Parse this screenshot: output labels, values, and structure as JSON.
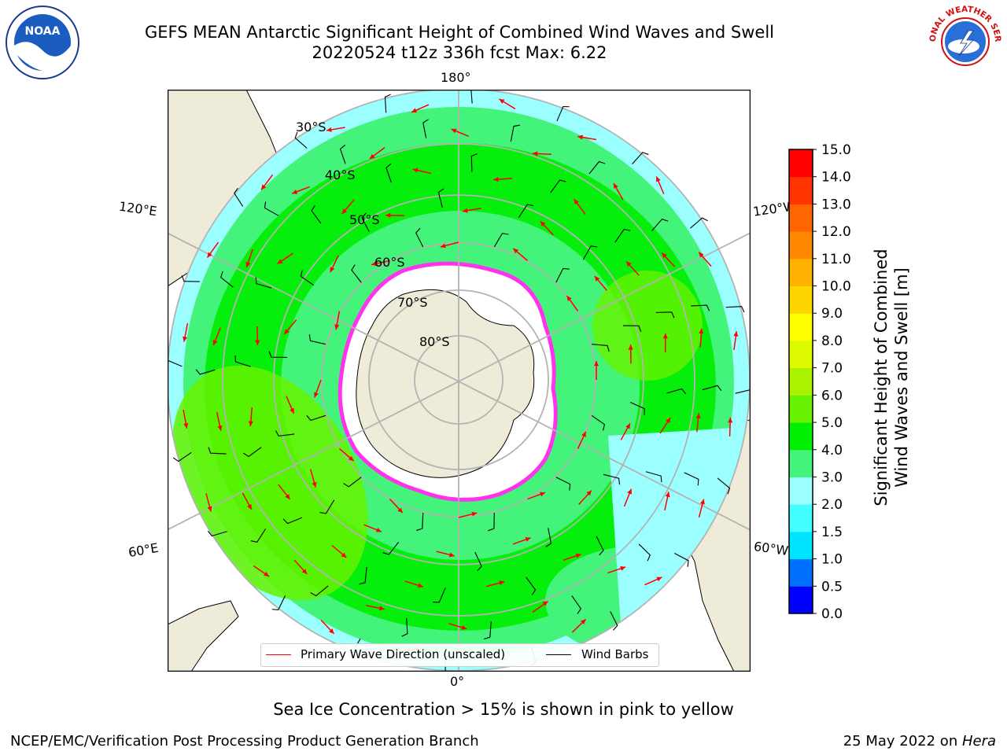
{
  "header": {
    "title_line1": "GEFS MEAN Antarctic Significant Height of Combined Wind Waves and Swell",
    "title_line2": "20220524 t12z 336h fcst   Max: 6.22"
  },
  "logos": {
    "left": {
      "icon": "noaa-logo",
      "text": "NOAA"
    },
    "right": {
      "icon": "nws-logo",
      "text": "NATIONAL WEATHER SERVICE"
    }
  },
  "map": {
    "projection": "south-polar-stereographic",
    "longitude_labels": {
      "top": "180°",
      "bottom": "0°",
      "left_upper": "120°E",
      "left_lower": "60°E",
      "right_upper": "120°W",
      "right_lower": "60°W"
    },
    "latitude_labels": [
      "30°S",
      "40°S",
      "50°S",
      "60°S",
      "70°S",
      "80°S"
    ],
    "colors": {
      "land": "#eeebd9",
      "ice_edge": "#ff33ee",
      "wave_arrow": "#ff0000",
      "wind_barb": "#000000",
      "grid": "#b3b3b3"
    }
  },
  "legend": {
    "wave_label": "Primary Wave Direction (unscaled)",
    "barb_label": "Wind Barbs",
    "wave_color": "#ff0000",
    "barb_color": "#000000"
  },
  "colorbar": {
    "label_line1": "Significant Height of Combined",
    "label_line2": "Wind Waves and Swell [m]",
    "ticks": [
      "0.0",
      "0.5",
      "1.0",
      "1.5",
      "2.0",
      "3.0",
      "4.0",
      "5.0",
      "6.0",
      "7.0",
      "8.0",
      "9.0",
      "10.0",
      "11.0",
      "12.0",
      "13.0",
      "14.0",
      "15.0"
    ],
    "colors": [
      "#0000ff",
      "#0070ff",
      "#00e5ff",
      "#44ffff",
      "#9bffff",
      "#44f47a",
      "#00ee00",
      "#66f200",
      "#aaf200",
      "#ddfa00",
      "#ffff00",
      "#ffd500",
      "#ffb300",
      "#ff8800",
      "#ff6600",
      "#ff3300",
      "#ff0000"
    ]
  },
  "subtitle": "Sea Ice Concentration > 15% is shown in pink to yellow",
  "footer": {
    "left": "NCEP/EMC/Verification Post Processing Product Generation Branch",
    "right_prefix": "25 May 2022 on ",
    "right_host": "Hera"
  }
}
